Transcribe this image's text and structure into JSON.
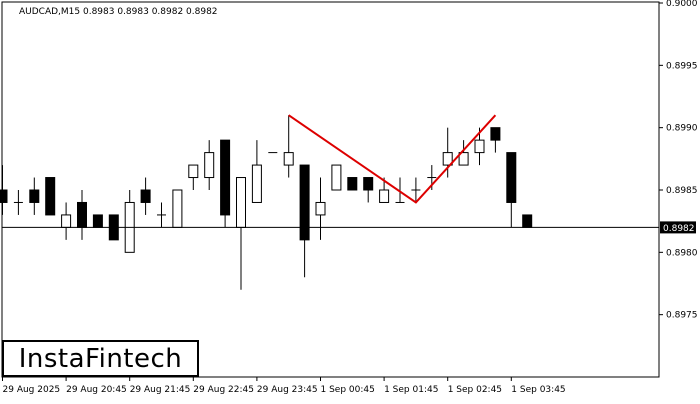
{
  "header": {
    "symbol_info": "AUDCAD,M15  0.8983 0.8983 0.8982 0.8982"
  },
  "logo": {
    "text": "InstaFintech"
  },
  "colors": {
    "background": "#ffffff",
    "candle_bear": "#000000",
    "candle_bull": "#ffffff",
    "pattern_line": "#dd0000",
    "price_line": "#000000"
  },
  "chart_data": {
    "type": "candlestick",
    "title": "AUDCAD,M15",
    "ohlc_header": [
      0.8983,
      0.8983,
      0.8982,
      0.8982
    ],
    "ylim": [
      0.897,
      0.9
    ],
    "y_ticks": [
      "0.9000",
      "0.8995",
      "0.8990",
      "0.8985",
      "0.8980",
      "0.8975"
    ],
    "x_ticks": [
      "29 Aug 2025",
      "29 Aug 20:45",
      "29 Aug 21:45",
      "29 Aug 22:45",
      "29 Aug 23:45",
      "1 Sep 00:45",
      "1 Sep 01:45",
      "1 Sep 02:45",
      "1 Sep 03:45"
    ],
    "current_price": "0.8982",
    "candles": [
      {
        "o": 0.8985,
        "h": 0.8987,
        "l": 0.8983,
        "c": 0.8984
      },
      {
        "o": 0.8984,
        "h": 0.8985,
        "l": 0.8983,
        "c": 0.8984
      },
      {
        "o": 0.8985,
        "h": 0.8986,
        "l": 0.8983,
        "c": 0.8984
      },
      {
        "o": 0.8986,
        "h": 0.8986,
        "l": 0.8983,
        "c": 0.8983
      },
      {
        "o": 0.8982,
        "h": 0.8984,
        "l": 0.8981,
        "c": 0.8983
      },
      {
        "o": 0.8984,
        "h": 0.8985,
        "l": 0.8981,
        "c": 0.8982
      },
      {
        "o": 0.8983,
        "h": 0.8983,
        "l": 0.8982,
        "c": 0.8982
      },
      {
        "o": 0.8983,
        "h": 0.8983,
        "l": 0.8981,
        "c": 0.8981
      },
      {
        "o": 0.898,
        "h": 0.8985,
        "l": 0.898,
        "c": 0.8984
      },
      {
        "o": 0.8985,
        "h": 0.8986,
        "l": 0.8983,
        "c": 0.8984
      },
      {
        "o": 0.8983,
        "h": 0.8984,
        "l": 0.8982,
        "c": 0.8983
      },
      {
        "o": 0.8982,
        "h": 0.8985,
        "l": 0.8982,
        "c": 0.8985
      },
      {
        "o": 0.8986,
        "h": 0.8987,
        "l": 0.8985,
        "c": 0.8987
      },
      {
        "o": 0.8986,
        "h": 0.8989,
        "l": 0.8985,
        "c": 0.8988
      },
      {
        "o": 0.8989,
        "h": 0.8989,
        "l": 0.8982,
        "c": 0.8983
      },
      {
        "o": 0.8982,
        "h": 0.8986,
        "l": 0.8977,
        "c": 0.8986
      },
      {
        "o": 0.8984,
        "h": 0.8989,
        "l": 0.8984,
        "c": 0.8987
      },
      {
        "o": 0.8988,
        "h": 0.8988,
        "l": 0.8988,
        "c": 0.8988
      },
      {
        "o": 0.8987,
        "h": 0.8991,
        "l": 0.8986,
        "c": 0.8988
      },
      {
        "o": 0.8987,
        "h": 0.8987,
        "l": 0.8978,
        "c": 0.8981
      },
      {
        "o": 0.8983,
        "h": 0.8986,
        "l": 0.8981,
        "c": 0.8984
      },
      {
        "o": 0.8985,
        "h": 0.8987,
        "l": 0.8985,
        "c": 0.8987
      },
      {
        "o": 0.8986,
        "h": 0.8986,
        "l": 0.8985,
        "c": 0.8985
      },
      {
        "o": 0.8986,
        "h": 0.8986,
        "l": 0.8984,
        "c": 0.8985
      },
      {
        "o": 0.8984,
        "h": 0.8986,
        "l": 0.8984,
        "c": 0.8985
      },
      {
        "o": 0.8984,
        "h": 0.8986,
        "l": 0.8984,
        "c": 0.8984
      },
      {
        "o": 0.8985,
        "h": 0.8986,
        "l": 0.8984,
        "c": 0.8985
      },
      {
        "o": 0.8986,
        "h": 0.8987,
        "l": 0.8985,
        "c": 0.8986
      },
      {
        "o": 0.8987,
        "h": 0.899,
        "l": 0.8986,
        "c": 0.8988
      },
      {
        "o": 0.8987,
        "h": 0.8989,
        "l": 0.8987,
        "c": 0.8988
      },
      {
        "o": 0.8988,
        "h": 0.899,
        "l": 0.8987,
        "c": 0.8989
      },
      {
        "o": 0.899,
        "h": 0.899,
        "l": 0.8988,
        "c": 0.8989
      },
      {
        "o": 0.8988,
        "h": 0.8988,
        "l": 0.8982,
        "c": 0.8984
      },
      {
        "o": 0.8983,
        "h": 0.8983,
        "l": 0.8982,
        "c": 0.8982
      }
    ],
    "pattern": {
      "name": "Double Top",
      "points": [
        {
          "candle": 18,
          "price": 0.8991
        },
        {
          "candle": 26,
          "price": 0.8984
        },
        {
          "candle": 31,
          "price": 0.8991
        }
      ]
    }
  }
}
